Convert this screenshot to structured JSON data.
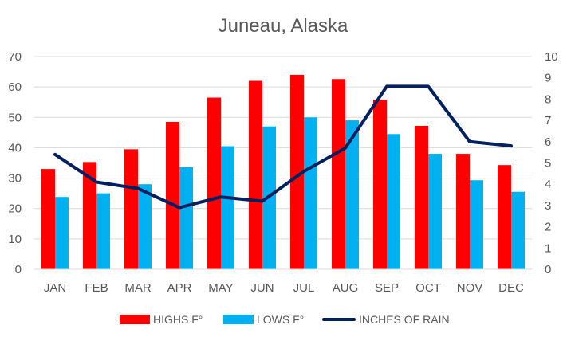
{
  "chart_data": {
    "type": "bar",
    "title": "Juneau, Alaska",
    "categories": [
      "JAN",
      "FEB",
      "MAR",
      "APR",
      "MAY",
      "JUN",
      "JUL",
      "AUG",
      "SEP",
      "OCT",
      "NOV",
      "DEC"
    ],
    "series": [
      {
        "name": "HIGHS F°",
        "type": "bar",
        "axis": "left",
        "color": "#FF0000",
        "values": [
          33,
          35.3,
          39.5,
          48.5,
          56.5,
          62,
          64,
          62.6,
          55.8,
          47.2,
          38,
          34.3
        ]
      },
      {
        "name": "LOWS F°",
        "type": "bar",
        "axis": "left",
        "color": "#00B0F0",
        "values": [
          23.8,
          25,
          28,
          33.6,
          40.5,
          47,
          50,
          49,
          44.5,
          38,
          29.3,
          25.5
        ]
      },
      {
        "name": "INCHES OF RAIN",
        "type": "line",
        "axis": "right",
        "color": "#002060",
        "values": [
          5.4,
          4.1,
          3.8,
          2.9,
          3.4,
          3.2,
          4.6,
          5.7,
          8.6,
          8.6,
          6.0,
          5.8
        ]
      }
    ],
    "ylim_left": [
      0,
      70
    ],
    "yticks_left": [
      "0",
      "10",
      "20",
      "30",
      "40",
      "50",
      "60",
      "70"
    ],
    "ylim_right": [
      0,
      10
    ],
    "yticks_right": [
      "0",
      "1",
      "2",
      "3",
      "4",
      "5",
      "6",
      "7",
      "8",
      "9",
      "10"
    ],
    "grid": true,
    "legend": "bottom",
    "xlabel": "",
    "ylabel": ""
  }
}
